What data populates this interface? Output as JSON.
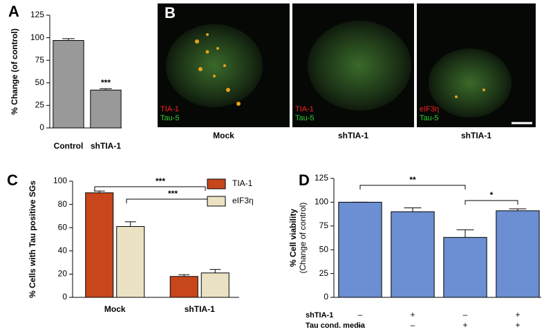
{
  "chart_data": [
    {
      "type": "bar",
      "panel_label": "A",
      "ylabel": "% Change (of control)",
      "categories": [
        "Control",
        "shTIA-1"
      ],
      "values": [
        97,
        42
      ],
      "errors": [
        2,
        1.5
      ],
      "color": "#999999",
      "ylim": [
        0,
        125
      ],
      "yticks": [
        0,
        25,
        50,
        75,
        100,
        125
      ],
      "annotations": [
        {
          "text": "***"
        }
      ]
    },
    {
      "type": "grouped_bar",
      "panel_label": "C",
      "ylabel": "% Cells with Tau positive SGs",
      "categories": [
        "Mock",
        "shTIA-1"
      ],
      "series": [
        {
          "name": "TIA-1",
          "color": "#c8461b",
          "values": [
            90,
            18
          ],
          "errors": [
            1.5,
            1.5
          ]
        },
        {
          "name": "eIF3η",
          "color": "#ebe2c3",
          "values": [
            61,
            21
          ],
          "errors": [
            4,
            3
          ]
        }
      ],
      "ylim": [
        0,
        100
      ],
      "yticks": [
        0,
        20,
        40,
        60,
        80,
        100
      ],
      "legend": "top-right",
      "annotations": [
        {
          "text": "***"
        },
        {
          "text": "***"
        }
      ]
    },
    {
      "type": "bar",
      "panel_label": "D",
      "ylabel": [
        "% Cell viability",
        "(Change of control)"
      ],
      "categories": [
        null,
        null,
        null,
        null
      ],
      "values": [
        100,
        90,
        63,
        91
      ],
      "errors": [
        0,
        4,
        8,
        2
      ],
      "color": "#6b8fd2",
      "ylim": [
        0,
        125
      ],
      "yticks": [
        0,
        25,
        50,
        75,
        100,
        125
      ],
      "annotations": [
        {
          "text": "**"
        },
        {
          "text": "*"
        }
      ],
      "table": {
        "rows": [
          {
            "label": "shTIA-1",
            "cells": [
              "–",
              "+",
              "–",
              "+"
            ]
          },
          {
            "label": "Tau cond. media",
            "cells": [
              "–",
              "–",
              "+",
              "+"
            ]
          }
        ]
      }
    }
  ],
  "panel_b": {
    "panel_label": "B",
    "images": [
      {
        "red_label": "TIA-1",
        "green_label": "Tau-5",
        "caption": "Mock"
      },
      {
        "red_label": "TIA-1",
        "green_label": "Tau-5",
        "caption": "shTIA-1"
      },
      {
        "red_label": "eIF3η",
        "green_label": "Tau-5",
        "caption": "shTIA-1"
      }
    ]
  }
}
